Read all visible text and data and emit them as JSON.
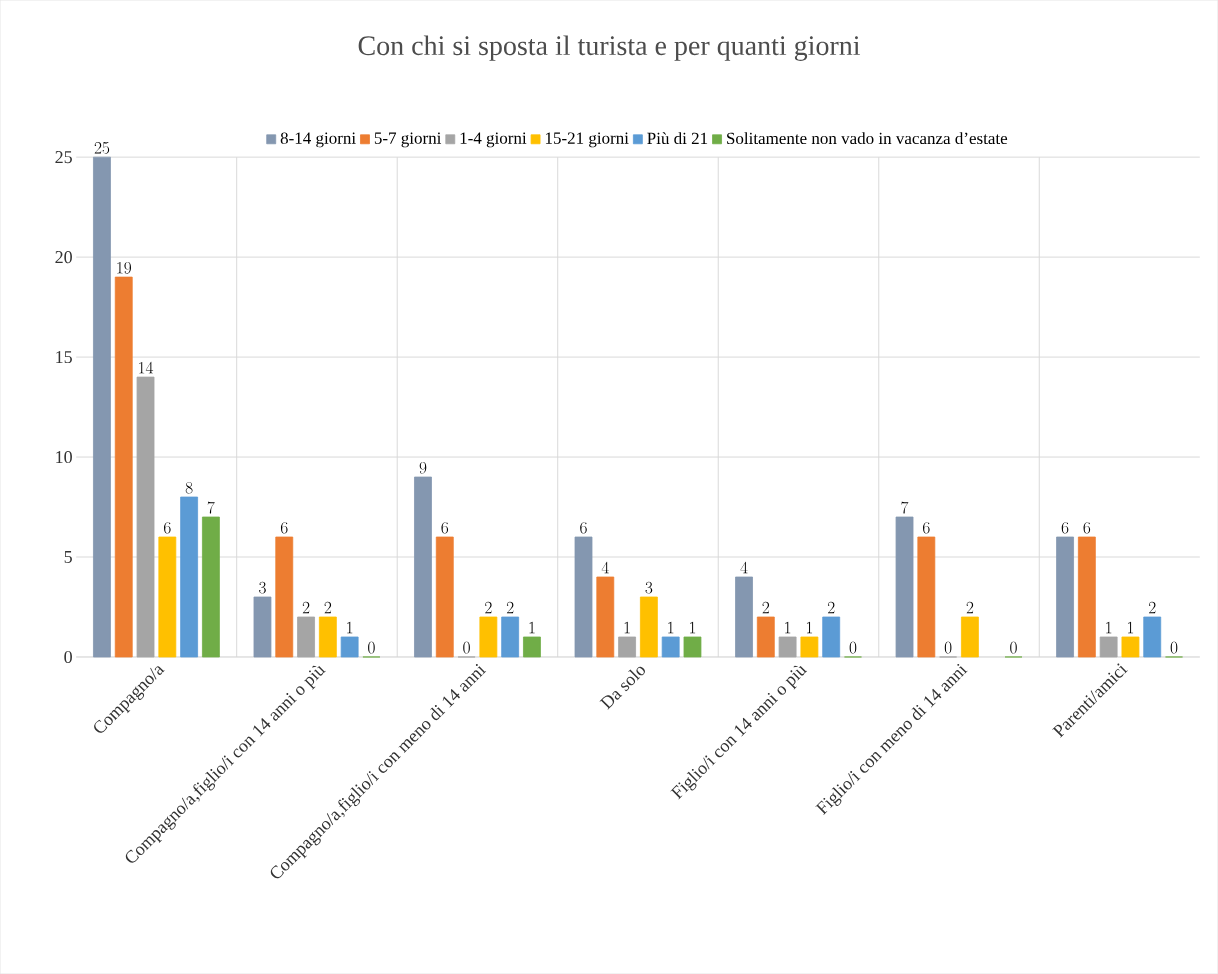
{
  "chart_data": {
    "type": "bar",
    "title": "Con chi si sposta il turista e per quanti giorni",
    "categories": [
      "Compagno/a",
      "Compagno/a,figlio/i con 14 anni o più",
      "Compagno/a,figlio/i con meno di 14 anni",
      "Da solo",
      "Figlio/i con 14 anni o più",
      "Figlio/i con meno di 14 anni",
      "Parenti/amici"
    ],
    "series": [
      {
        "name": "8-14 giorni",
        "color": "#8497b0",
        "values": [
          25,
          3,
          9,
          6,
          4,
          7,
          6
        ]
      },
      {
        "name": "5-7 giorni",
        "color": "#ed7d31",
        "values": [
          19,
          6,
          6,
          4,
          2,
          6,
          6
        ]
      },
      {
        "name": "1-4 giorni",
        "color": "#a5a5a5",
        "values": [
          14,
          2,
          0,
          1,
          1,
          0,
          1
        ]
      },
      {
        "name": "15-21 giorni",
        "color": "#ffc000",
        "values": [
          6,
          2,
          2,
          3,
          1,
          2,
          1
        ]
      },
      {
        "name": "Più di 21",
        "color": "#5b9bd5",
        "values": [
          8,
          1,
          2,
          1,
          2,
          null,
          2
        ]
      },
      {
        "name": "Solitamente non vado in vacanza d’estate",
        "color": "#70ad47",
        "values": [
          7,
          0,
          1,
          1,
          0,
          0,
          0
        ]
      }
    ],
    "ylim": [
      0,
      25
    ],
    "yticks": [
      0,
      5,
      10,
      15,
      20,
      25
    ],
    "grid": true,
    "legend": "top",
    "data_labels": true
  }
}
